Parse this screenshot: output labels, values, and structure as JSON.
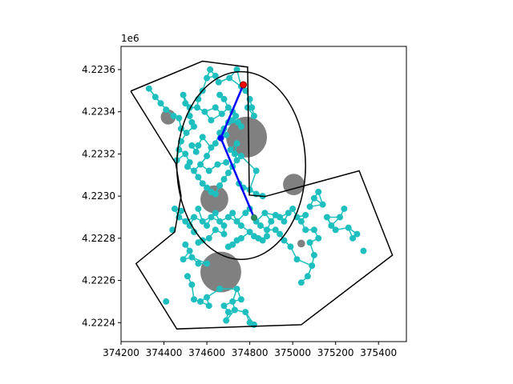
{
  "chart_data": {
    "type": "scatter",
    "title": "",
    "xlabel": "",
    "ylabel": "",
    "offset_text": "1e6",
    "xlim": [
      374200,
      375530
    ],
    "ylim": [
      4222310,
      4223710
    ],
    "x_ticks": [
      374200,
      374400,
      374600,
      374800,
      375000,
      375200,
      375400
    ],
    "x_tick_labels": [
      "374200",
      "374400",
      "374600",
      "374800",
      "375000",
      "375200",
      "375400"
    ],
    "y_ticks": [
      4222400,
      4222600,
      4222800,
      4223000,
      4223200,
      4223400,
      4223600
    ],
    "y_tick_labels": [
      "4.2224",
      "4.2226",
      "4.2228",
      "4.2230",
      "4.2232",
      "4.2234",
      "4.2236"
    ],
    "grid": false,
    "colors": {
      "nodes": "#1fbfbf",
      "obstacles": "#808080",
      "path": "#0000ff",
      "boundary": "#000000",
      "start": "#2e8b57",
      "goal": "#ff0000"
    },
    "boundary_upper": [
      [
        374245,
        4223498
      ],
      [
        374580,
        4223640
      ],
      [
        374790,
        4223612
      ],
      [
        374798,
        4223005
      ],
      [
        374870,
        4222998
      ],
      [
        375310,
        4223120
      ],
      [
        375465,
        4222720
      ],
      [
        375040,
        4222390
      ],
      [
        374460,
        4222370
      ],
      [
        374270,
        4222680
      ],
      [
        374450,
        4222830
      ],
      [
        374480,
        4223000
      ],
      [
        374455,
        4223155
      ],
      [
        374245,
        4223498
      ]
    ],
    "ellipse": {
      "cx": 374760,
      "cy": 4223145,
      "rx": 300,
      "ry": 445
    },
    "obstacles": [
      {
        "x": 374420,
        "y": 4223375,
        "r": 35
      },
      {
        "x": 374785,
        "y": 4223280,
        "r": 95
      },
      {
        "x": 375005,
        "y": 4223055,
        "r": 50
      },
      {
        "x": 374635,
        "y": 4222985,
        "r": 65
      },
      {
        "x": 375040,
        "y": 4222775,
        "r": 18
      },
      {
        "x": 374665,
        "y": 4222640,
        "r": 95
      }
    ],
    "path": [
      [
        374770,
        4223528
      ],
      [
        374665,
        4223275
      ],
      [
        374820,
        4222898
      ]
    ],
    "start": [
      374820,
      4222898
    ],
    "goal": [
      374770,
      4223528
    ],
    "nodes_upper": [
      [
        374330,
        4223510
      ],
      [
        374360,
        4223470
      ],
      [
        374385,
        4223440
      ],
      [
        374410,
        4223410
      ],
      [
        374445,
        4223380
      ],
      [
        374470,
        4223370
      ],
      [
        374480,
        4223320
      ],
      [
        374505,
        4223300
      ],
      [
        374530,
        4223350
      ],
      [
        374555,
        4223420
      ],
      [
        374580,
        4223500
      ],
      [
        374600,
        4223560
      ],
      [
        374615,
        4223600
      ],
      [
        374640,
        4223570
      ],
      [
        374655,
        4223540
      ],
      [
        374660,
        4223480
      ],
      [
        374680,
        4223460
      ],
      [
        374700,
        4223420
      ],
      [
        374720,
        4223400
      ],
      [
        374735,
        4223380
      ],
      [
        374745,
        4223350
      ],
      [
        374760,
        4223330
      ],
      [
        374705,
        4223560
      ],
      [
        374740,
        4223600
      ],
      [
        374760,
        4223520
      ],
      [
        374780,
        4223500
      ],
      [
        374800,
        4223460
      ],
      [
        374810,
        4223420
      ],
      [
        374820,
        4223380
      ],
      [
        374790,
        4223420
      ],
      [
        374500,
        4223200
      ],
      [
        374520,
        4223160
      ],
      [
        374540,
        4223120
      ],
      [
        374560,
        4223090
      ],
      [
        374580,
        4223060
      ],
      [
        374600,
        4223040
      ],
      [
        374620,
        4223020
      ],
      [
        374640,
        4223010
      ],
      [
        374660,
        4223050
      ],
      [
        374680,
        4223080
      ],
      [
        374700,
        4223110
      ],
      [
        374720,
        4223140
      ],
      [
        374740,
        4223170
      ],
      [
        374760,
        4223190
      ],
      [
        374600,
        4223190
      ],
      [
        374620,
        4223230
      ],
      [
        374640,
        4223250
      ],
      [
        374660,
        4223300
      ],
      [
        374680,
        4223320
      ],
      [
        374700,
        4223350
      ],
      [
        374720,
        4223360
      ],
      [
        374740,
        4223250
      ],
      [
        374580,
        4223280
      ],
      [
        374560,
        4223240
      ],
      [
        374540,
        4223330
      ],
      [
        374520,
        4223380
      ],
      [
        374500,
        4223440
      ],
      [
        374490,
        4223480
      ],
      [
        374520,
        4223420
      ],
      [
        374560,
        4223460
      ],
      [
        374590,
        4223400
      ],
      [
        374620,
        4223360
      ],
      [
        374640,
        4223420
      ],
      [
        374670,
        4223390
      ],
      [
        374690,
        4223290
      ],
      [
        374710,
        4223220
      ],
      [
        374730,
        4223200
      ],
      [
        374750,
        4223060
      ],
      [
        374770,
        4223040
      ],
      [
        374800,
        4223030
      ],
      [
        374830,
        4223120
      ],
      [
        374830,
        4223010
      ],
      [
        374860,
        4223000
      ],
      [
        374610,
        4223120
      ],
      [
        374650,
        4223150
      ],
      [
        374690,
        4223160
      ],
      [
        374570,
        4223150
      ],
      [
        374530,
        4223240
      ],
      [
        374480,
        4223260
      ],
      [
        374470,
        4223220
      ],
      [
        374460,
        4223170
      ],
      [
        374510,
        4223140
      ],
      [
        374550,
        4223210
      ]
    ],
    "nodes_lower": [
      [
        374450,
        4222940
      ],
      [
        374470,
        4222900
      ],
      [
        374500,
        4222880
      ],
      [
        374520,
        4222860
      ],
      [
        374540,
        4222900
      ],
      [
        374560,
        4222940
      ],
      [
        374580,
        4222880
      ],
      [
        374600,
        4222860
      ],
      [
        374620,
        4222900
      ],
      [
        374640,
        4222920
      ],
      [
        374660,
        4222880
      ],
      [
        374680,
        4222860
      ],
      [
        374700,
        4222900
      ],
      [
        374720,
        4222920
      ],
      [
        374740,
        4222880
      ],
      [
        374760,
        4222860
      ],
      [
        374780,
        4222920
      ],
      [
        374800,
        4222940
      ],
      [
        374830,
        4222880
      ],
      [
        374850,
        4222860
      ],
      [
        374870,
        4222920
      ],
      [
        374880,
        4222840
      ],
      [
        374900,
        4222880
      ],
      [
        374920,
        4222910
      ],
      [
        374940,
        4222900
      ],
      [
        374960,
        4222880
      ],
      [
        374980,
        4222920
      ],
      [
        375000,
        4222940
      ],
      [
        375020,
        4222900
      ],
      [
        375040,
        4222880
      ],
      [
        375060,
        4222910
      ],
      [
        375080,
        4222950
      ],
      [
        375100,
        4222990
      ],
      [
        375120,
        4223020
      ],
      [
        375140,
        4222960
      ],
      [
        375160,
        4222900
      ],
      [
        375180,
        4222860
      ],
      [
        375200,
        4222840
      ],
      [
        375220,
        4222900
      ],
      [
        375240,
        4222940
      ],
      [
        375260,
        4222850
      ],
      [
        375280,
        4222800
      ],
      [
        375300,
        4222820
      ],
      [
        375330,
        4222740
      ],
      [
        375100,
        4222840
      ],
      [
        375120,
        4222800
      ],
      [
        375060,
        4222840
      ],
      [
        375080,
        4222780
      ],
      [
        375100,
        4222720
      ],
      [
        375090,
        4222670
      ],
      [
        375070,
        4222620
      ],
      [
        375040,
        4222590
      ],
      [
        375020,
        4222700
      ],
      [
        374990,
        4222760
      ],
      [
        374960,
        4222790
      ],
      [
        374940,
        4222820
      ],
      [
        374920,
        4222840
      ],
      [
        374880,
        4222810
      ],
      [
        374860,
        4222790
      ],
      [
        374840,
        4222800
      ],
      [
        374820,
        4222810
      ],
      [
        374800,
        4222830
      ],
      [
        374760,
        4222800
      ],
      [
        374740,
        4222790
      ],
      [
        374720,
        4222770
      ],
      [
        374700,
        4222760
      ],
      [
        374680,
        4222820
      ],
      [
        374640,
        4222840
      ],
      [
        374610,
        4222800
      ],
      [
        374580,
        4222790
      ],
      [
        374560,
        4222780
      ],
      [
        374440,
        4222840
      ],
      [
        374480,
        4222930
      ],
      [
        374540,
        4222830
      ],
      [
        374560,
        4222680
      ],
      [
        374600,
        4222680
      ],
      [
        374660,
        4222560
      ],
      [
        374600,
        4222520
      ],
      [
        374570,
        4222500
      ],
      [
        374540,
        4222510
      ],
      [
        374530,
        4222580
      ],
      [
        374510,
        4222620
      ],
      [
        374490,
        4222700
      ],
      [
        374410,
        4222500
      ],
      [
        374610,
        4222480
      ],
      [
        374680,
        4222480
      ],
      [
        374700,
        4222450
      ],
      [
        374720,
        4222500
      ],
      [
        374740,
        4222560
      ],
      [
        374760,
        4222510
      ],
      [
        374690,
        4222410
      ],
      [
        374730,
        4222460
      ],
      [
        374780,
        4222450
      ],
      [
        374800,
        4222400
      ],
      [
        374820,
        4222390
      ],
      [
        374500,
        4222770
      ],
      [
        374520,
        4222740
      ],
      [
        374530,
        4222710
      ]
    ]
  }
}
